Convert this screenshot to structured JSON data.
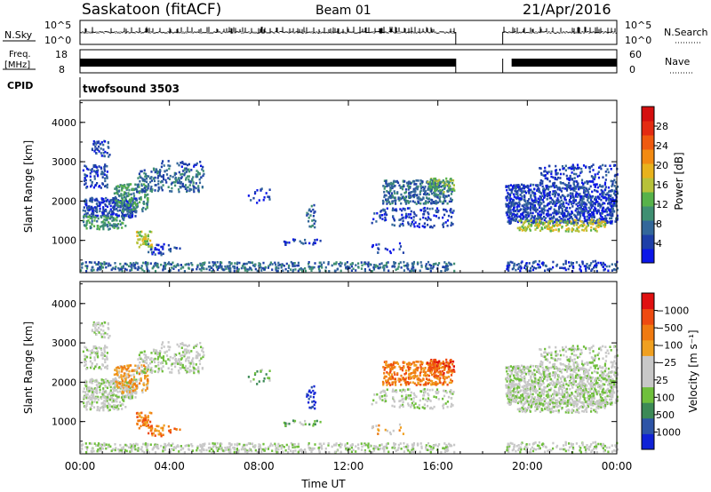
{
  "header": {
    "site": "Saskatoon (fitACF)",
    "beam": "Beam 01",
    "date": "21/Apr/2016"
  },
  "top_panels": {
    "nsky_label": "N.Sky",
    "nsky_ticks": [
      "10^5",
      "10^0"
    ],
    "nsearch_label": "N.Search",
    "freq_label_1": "Freq.",
    "freq_label_2": "[MHz]",
    "freq_ticks": [
      "18",
      "8"
    ],
    "nave_label": "Nave",
    "nave_ticks": [
      "60",
      "0"
    ],
    "cpid_label": "CPID",
    "cpid_value": "twofsound 3503"
  },
  "chart_data": [
    {
      "type": "heatmap",
      "panel": "power",
      "ylabel": "Slant Range [km]",
      "yticks": [
        1000,
        2000,
        3000,
        4000
      ],
      "ylim": [
        180,
        4560
      ],
      "xlim": [
        0,
        24
      ],
      "colorbar_label": "Power [dB]",
      "colorbar_ticks": [
        "4",
        "8",
        "12",
        "16",
        "20",
        "24",
        "28"
      ],
      "colors": [
        "#0b16e8",
        "#1e3fa8",
        "#33679a",
        "#3f8f72",
        "#57b24a",
        "#b7c23a",
        "#e8b21c",
        "#f28a12",
        "#ef5a0f",
        "#e32b12",
        "#d40f0f"
      ],
      "data_gap_hours": [
        16.8,
        18.9
      ]
    },
    {
      "type": "heatmap",
      "panel": "velocity",
      "ylabel": "Slant Range [km]",
      "yticks": [
        1000,
        2000,
        3000,
        4000
      ],
      "ylim": [
        180,
        4560
      ],
      "xlim": [
        0,
        24
      ],
      "colorbar_label": "Velocity [m s⁻¹]",
      "colorbar_ticks": [
        "1000",
        "500",
        "100",
        "25",
        "−25",
        "−100",
        "−500",
        "−1000"
      ],
      "colors": [
        "#1022d6",
        "#2d54a6",
        "#3c8a56",
        "#6fbf3c",
        "#c8c8c8",
        "#c8c8c8",
        "#f0a020",
        "#f07a10",
        "#ee4a10",
        "#e01010"
      ],
      "data_gap_hours": [
        16.8,
        18.9
      ]
    }
  ],
  "xaxis": {
    "ticks": [
      "00:00",
      "04:00",
      "08:00",
      "12:00",
      "16:00",
      "20:00",
      "00:00"
    ],
    "xlabel": "Time UT"
  }
}
